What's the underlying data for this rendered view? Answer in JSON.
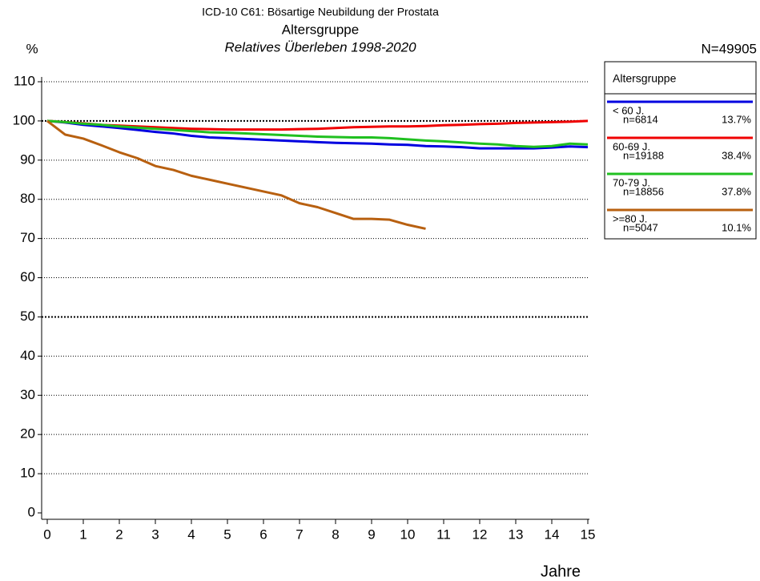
{
  "chart_data": {
    "type": "line",
    "title": "ICD-10 C61: Bösartige Neubildung der Prostata",
    "subtitle": "Altersgruppe",
    "subtitle2": "Relatives Überleben 1998-2020",
    "y_label": "%",
    "x_label": "Jahre",
    "annotation": "N=49905",
    "legend_title": "Altersgruppe",
    "legend_position": "right",
    "grid": true,
    "emphasized_yticks": [
      50,
      100
    ],
    "xlim": [
      0,
      15
    ],
    "xticks": [
      0,
      1,
      2,
      3,
      4,
      5,
      6,
      7,
      8,
      9,
      10,
      11,
      12,
      13,
      14,
      15
    ],
    "ylim": [
      0,
      110
    ],
    "yticks": [
      0,
      10,
      20,
      30,
      40,
      50,
      60,
      70,
      80,
      90,
      100,
      110
    ],
    "x": [
      0,
      0.5,
      1,
      1.5,
      2,
      2.5,
      3,
      3.5,
      4,
      4.5,
      5,
      5.5,
      6,
      6.5,
      7,
      7.5,
      8,
      8.5,
      9,
      9.5,
      10,
      10.5,
      11,
      11.5,
      12,
      12.5,
      13,
      13.5,
      14,
      14.5,
      15
    ],
    "series": [
      {
        "name": "< 60 J.",
        "n_label": "n=6814",
        "share_label": "13.7%",
        "color": "#0000e0",
        "values": [
          100,
          99.6,
          99,
          98.6,
          98.2,
          97.7,
          97.2,
          96.8,
          96.2,
          95.8,
          95.6,
          95.4,
          95.2,
          95,
          94.8,
          94.6,
          94.4,
          94.3,
          94.2,
          94,
          93.9,
          93.6,
          93.5,
          93.3,
          93,
          93,
          93,
          93,
          93.2,
          93.5,
          93.3
        ]
      },
      {
        "name": "60-69 J.",
        "n_label": "n=19188",
        "share_label": "38.4%",
        "color": "#f00000",
        "values": [
          100,
          99.7,
          99.4,
          99,
          98.8,
          98.6,
          98.4,
          98.2,
          98,
          97.9,
          97.8,
          97.8,
          97.8,
          97.8,
          97.9,
          98,
          98.2,
          98.4,
          98.5,
          98.6,
          98.6,
          98.7,
          98.9,
          99,
          99.2,
          99.3,
          99.5,
          99.6,
          99.7,
          99.8,
          100
        ]
      },
      {
        "name": "70-79 J.",
        "n_label": "n=18856",
        "share_label": "37.8%",
        "color": "#20c020",
        "values": [
          100,
          99.7,
          99.3,
          99,
          98.6,
          98.3,
          98,
          97.7,
          97.4,
          97.1,
          97,
          96.8,
          96.6,
          96.4,
          96.2,
          96,
          95.9,
          95.8,
          95.8,
          95.6,
          95.3,
          95,
          94.8,
          94.5,
          94.2,
          94,
          93.6,
          93.4,
          93.6,
          94.2,
          94
        ]
      },
      {
        "name": ">=80 J.",
        "n_label": "n=5047",
        "share_label": "10.1%",
        "color": "#b86010",
        "values": [
          100,
          96.5,
          95.5,
          93.8,
          92,
          90.5,
          88.5,
          87.5,
          86,
          85,
          84,
          83,
          82,
          81,
          79,
          78,
          76.5,
          75,
          75,
          74.8,
          73.5,
          72.5,
          null,
          null,
          null,
          null,
          null,
          null,
          null,
          null,
          null
        ]
      }
    ]
  }
}
